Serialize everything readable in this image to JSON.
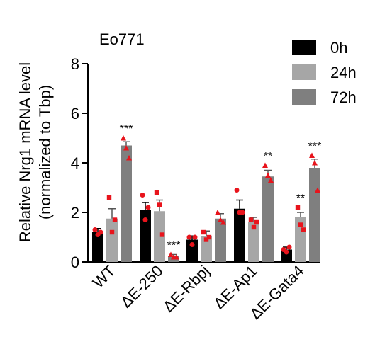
{
  "chart_data": {
    "type": "bar",
    "title": "Eo771",
    "ylabel_line1": "Relative Nrg1 mRNA level",
    "ylabel_line2": "(normalized to Tbp)",
    "xlabel": "",
    "ylim": [
      0,
      8
    ],
    "yticks": [
      "0",
      "2",
      "4",
      "6",
      "8"
    ],
    "grid": false,
    "legend_position": "top-right",
    "categories": [
      "WT",
      "ΔE-250",
      "ΔE-Rbpj",
      "ΔE-Ap1",
      "ΔE-Gata4"
    ],
    "series": [
      {
        "name": "0h",
        "color": "#000000",
        "values": [
          1.2,
          2.1,
          0.9,
          2.15,
          0.5
        ],
        "errors": [
          0.15,
          0.3,
          0.15,
          0.35,
          0.1
        ],
        "points": [
          [
            1.3,
            1.1,
            1.2
          ],
          [
            2.7,
            1.7,
            2.2
          ],
          [
            1.0,
            0.7,
            1.0
          ],
          [
            2.9,
            2.0,
            2.0
          ],
          [
            0.5,
            0.4,
            0.6
          ]
        ],
        "significance": [
          "",
          "",
          "",
          "",
          ""
        ]
      },
      {
        "name": "24h",
        "color": "#a6a6a6",
        "values": [
          1.75,
          2.05,
          1.05,
          1.6,
          1.8
        ],
        "errors": [
          0.4,
          0.45,
          0.2,
          0.2,
          0.2
        ],
        "points": [
          [
            2.6,
            1.2,
            1.7
          ],
          [
            2.8,
            2.3,
            1.1
          ],
          [
            1.2,
            0.9,
            1.0
          ],
          [
            1.7,
            1.4,
            1.6
          ],
          [
            2.2,
            1.5,
            1.3
          ]
        ],
        "significance": [
          "",
          "",
          "",
          "",
          "**"
        ]
      },
      {
        "name": "72h",
        "color": "#7f7f7f",
        "values": [
          4.7,
          0.25,
          1.75,
          3.45,
          3.8
        ],
        "errors": [
          0.15,
          0.05,
          0.2,
          0.25,
          0.35
        ],
        "points": [
          [
            5.0,
            4.6,
            4.2
          ],
          [
            0.3,
            0.2,
            0.2
          ],
          [
            2.0,
            1.7,
            1.6
          ],
          [
            3.9,
            3.5,
            3.3
          ],
          [
            4.3,
            4.0,
            2.9
          ]
        ],
        "significance": [
          "***",
          "***",
          "",
          "**",
          "***"
        ]
      }
    ],
    "point_color": "#e8141c"
  }
}
